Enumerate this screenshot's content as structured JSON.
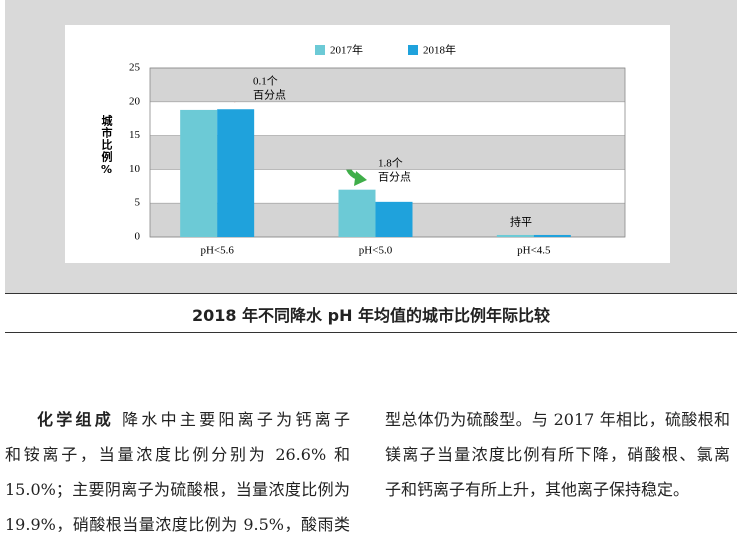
{
  "chart_data": {
    "type": "bar",
    "y_label": "城市比例%",
    "categories": [
      "pH<5.6",
      "pH<5.0",
      "pH<4.5"
    ],
    "series": [
      {
        "name": "2017年",
        "color": "#6ccad6",
        "values": [
          18.8,
          7.0,
          0.3
        ]
      },
      {
        "name": "2018年",
        "color": "#1fa2dc",
        "values": [
          18.9,
          5.2,
          0.3
        ]
      }
    ],
    "ylim": [
      0,
      25
    ],
    "yticks": [
      0,
      5,
      10,
      15,
      20,
      25
    ],
    "annotations": [
      [
        "0.1个",
        "百分点"
      ],
      [
        "1.8个",
        "百分点"
      ],
      [
        "持平"
      ]
    ]
  },
  "caption": "2018 年不同降水 pH 年均值的城市比例年际比较",
  "article": {
    "heading": "化学组成",
    "left_lines": [
      "降水中主要阳离子为钙离子",
      "和铵离子，当量浓度比例分别为 26.6% 和",
      "15.0%；主要阴离子为硫酸根，当量浓度比例为",
      "19.9%，硝酸根当量浓度比例为 9.5%，酸雨类"
    ],
    "right_lines": [
      "型总体仍为硫酸型。与 2017 年相比，硫酸根和",
      "镁离子当量浓度比例有所下降，硝酸根、氯离",
      "子和钙离子有所上升，其他离子保持稳定。"
    ]
  }
}
